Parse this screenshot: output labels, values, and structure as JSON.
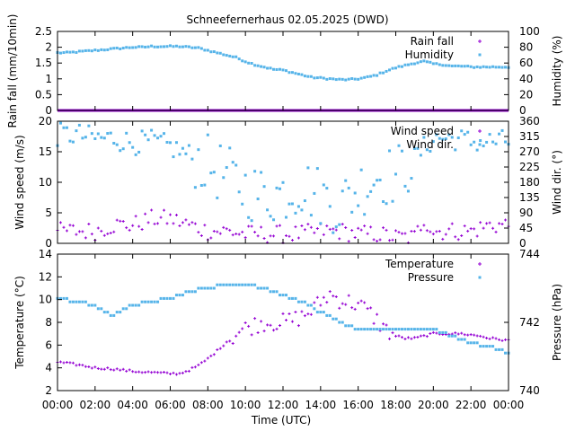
{
  "title": "Schneefernerhaus 02.05.2025 (DWD)",
  "xlabel": "Time (UTC)",
  "x_ticks": [
    "00:00",
    "02:00",
    "04:00",
    "06:00",
    "08:00",
    "10:00",
    "12:00",
    "14:00",
    "16:00",
    "18:00",
    "20:00",
    "22:00",
    "00:00"
  ],
  "colors": {
    "purple": "#9400d3",
    "blue": "#56b4e9"
  },
  "chart_data": [
    {
      "type": "scatter",
      "xlim": [
        0,
        24
      ],
      "left_axis": {
        "label": "Rain fall (mm/10min)",
        "ylim": [
          0,
          2.5
        ],
        "ticks": [
          "0",
          "0.5",
          "1",
          "1.5",
          "2",
          "2.5"
        ]
      },
      "right_axis": {
        "label": "Humidity (%)",
        "ylim": [
          0,
          100
        ],
        "ticks": [
          "0",
          "20",
          "40",
          "60",
          "80",
          "100"
        ]
      },
      "series": [
        {
          "name": "Rain fall",
          "axis": "left",
          "color": "#9400d3",
          "marker": "plus",
          "x": [
            0,
            24
          ],
          "values": [
            0,
            0
          ]
        },
        {
          "name": "Humidity",
          "axis": "right",
          "color": "#56b4e9",
          "marker": "square",
          "x": [
            0,
            0.5,
            1,
            1.5,
            2,
            2.5,
            3,
            3.5,
            4,
            4.5,
            5,
            5.5,
            6,
            6.5,
            7,
            7.5,
            8,
            8.5,
            9,
            9.5,
            10,
            10.5,
            11,
            11.5,
            12,
            12.5,
            13,
            13.5,
            14,
            14.5,
            15,
            15.5,
            16,
            16.5,
            17,
            17.5,
            18,
            18.5,
            19,
            19.5,
            20,
            20.5,
            21,
            21.5,
            22,
            22.5,
            23,
            23.5,
            24
          ],
          "values": [
            73,
            73,
            74,
            75,
            76,
            77,
            78,
            79,
            80,
            80,
            81,
            81,
            81,
            81,
            80,
            79,
            76,
            73,
            70,
            67,
            62,
            58,
            55,
            52,
            51,
            48,
            45,
            42,
            41,
            40,
            39,
            39,
            40,
            42,
            45,
            50,
            54,
            57,
            60,
            62,
            59,
            58,
            56,
            56,
            55,
            55,
            55,
            55,
            55
          ]
        }
      ]
    },
    {
      "type": "scatter",
      "xlim": [
        0,
        24
      ],
      "left_axis": {
        "label": "Wind speed (m/s)",
        "ylim": [
          0,
          20
        ],
        "ticks": [
          "0",
          "5",
          "10",
          "15",
          "20"
        ]
      },
      "right_axis": {
        "label": "Wind dir. (°)",
        "ylim": [
          0,
          360
        ],
        "ticks": [
          "0",
          "45",
          "90",
          "135",
          "180",
          "225",
          "270",
          "315",
          "360"
        ]
      },
      "series": [
        {
          "name": "Wind speed",
          "axis": "left",
          "color": "#9400d3",
          "marker": "plus",
          "x": [
            0,
            1,
            2,
            3,
            4,
            5,
            6,
            7,
            8,
            9,
            10,
            11,
            12,
            13,
            14,
            15,
            16,
            17,
            18,
            19,
            19.5,
            20,
            21,
            22,
            23,
            24
          ],
          "values": [
            2,
            2,
            2,
            3,
            3,
            4,
            4,
            3,
            2,
            2,
            1.5,
            1.5,
            1.5,
            1.5,
            2,
            2,
            1.5,
            1.5,
            1,
            1,
            4,
            2,
            2,
            2,
            3,
            3
          ]
        },
        {
          "name": "Wind dir.",
          "axis": "right",
          "color": "#56b4e9",
          "marker": "square",
          "x": [
            0,
            1,
            2,
            3,
            4,
            5,
            6,
            7,
            8,
            9,
            10,
            11,
            12,
            13,
            14,
            15,
            16,
            17,
            18,
            19,
            20,
            21,
            22,
            23,
            24
          ],
          "values": [
            320,
            320,
            310,
            310,
            295,
            300,
            285,
            260,
            230,
            200,
            160,
            140,
            150,
            170,
            140,
            110,
            160,
            200,
            200,
            250,
            310,
            310,
            300,
            300,
            300
          ]
        }
      ]
    },
    {
      "type": "scatter",
      "xlim": [
        0,
        24
      ],
      "left_axis": {
        "label": "Temperature (°C)",
        "ylim": [
          2,
          14
        ],
        "ticks": [
          "2",
          "4",
          "6",
          "8",
          "10",
          "12",
          "14"
        ]
      },
      "right_axis": {
        "label": "Pressure (hPa)",
        "ylim": [
          740,
          744
        ],
        "ticks": [
          "740",
          "742",
          "744"
        ]
      },
      "series": [
        {
          "name": "Temperature",
          "axis": "left",
          "color": "#9400d3",
          "marker": "plus",
          "x": [
            0,
            1,
            2,
            3,
            4,
            5,
            6,
            6.5,
            7,
            7.5,
            8,
            8.5,
            9,
            9.5,
            10,
            10.5,
            11,
            11.5,
            12,
            12.5,
            13,
            13.5,
            14,
            14.5,
            15,
            15.5,
            16,
            16.5,
            17,
            17.5,
            18,
            18.5,
            19,
            19.5,
            20,
            20.5,
            21,
            21.5,
            22,
            22.5,
            23,
            23.5,
            24
          ],
          "values": [
            4.5,
            4.3,
            4,
            3.9,
            3.7,
            3.6,
            3.5,
            3.5,
            3.8,
            4.2,
            4.8,
            5.5,
            6.3,
            7,
            7.5,
            7.8,
            8,
            8,
            8,
            8.2,
            8.5,
            9,
            9.8,
            10.5,
            10,
            9.8,
            9.6,
            9,
            8.2,
            7.3,
            6.8,
            6.6,
            6.6,
            6.8,
            7,
            7,
            7,
            7,
            6.9,
            6.8,
            6.6,
            6.5,
            6.4
          ]
        },
        {
          "name": "Pressure",
          "axis": "right",
          "color": "#56b4e9",
          "marker": "square",
          "x": [
            0,
            1,
            2,
            2.5,
            3,
            3.5,
            4,
            5,
            6,
            7,
            8,
            9,
            10,
            11,
            12,
            13,
            14,
            15,
            16,
            17,
            18,
            19,
            20,
            21,
            22,
            23,
            24
          ],
          "values": [
            742.7,
            742.6,
            742.5,
            742.3,
            742.2,
            742.4,
            742.5,
            742.6,
            742.7,
            742.9,
            743.0,
            743.1,
            743.1,
            743.0,
            742.8,
            742.6,
            742.3,
            742.0,
            741.8,
            741.8,
            741.8,
            741.8,
            741.8,
            741.6,
            741.4,
            741.3,
            741.1
          ]
        }
      ]
    }
  ]
}
